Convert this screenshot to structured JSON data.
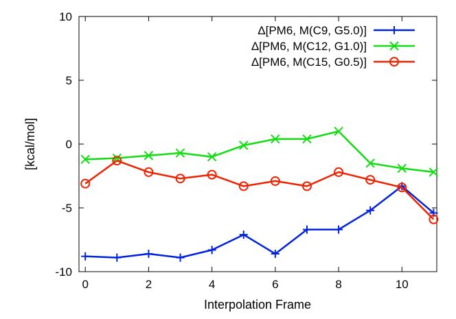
{
  "chart_data": {
    "type": "line",
    "title": "",
    "xlabel": "Interpolation Frame",
    "ylabel": "[kcal/mol]",
    "xlim": [
      -0.2,
      11.1
    ],
    "ylim": [
      -10,
      10
    ],
    "x_ticks": [
      0,
      2,
      4,
      6,
      8,
      10
    ],
    "y_ticks": [
      -10,
      -5,
      0,
      5,
      10
    ],
    "grid": false,
    "legend_position": "top-right",
    "x": [
      0,
      1,
      2,
      3,
      4,
      5,
      6,
      7,
      8,
      9,
      10,
      11
    ],
    "series": [
      {
        "name": "Δ[PM6, M(C9, G5.0)]",
        "color": "#0022dd",
        "marker": "plus",
        "values": [
          -8.8,
          -8.9,
          -8.6,
          -8.9,
          -8.3,
          -7.1,
          -8.6,
          -6.7,
          -6.7,
          -5.2,
          -3.3,
          -5.4
        ]
      },
      {
        "name": "Δ[PM6, M(C12, G1.0)]",
        "color": "#11dd11",
        "marker": "cross",
        "values": [
          -1.2,
          -1.1,
          -0.9,
          -0.7,
          -1.0,
          -0.1,
          0.4,
          0.4,
          1.0,
          -1.5,
          -1.9,
          -2.2
        ]
      },
      {
        "name": "Δ[PM6, M(C15, G0.5)]",
        "color": "#ee2200",
        "marker": "circle",
        "values": [
          -3.1,
          -1.3,
          -2.2,
          -2.7,
          -2.4,
          -3.3,
          -2.9,
          -3.3,
          -2.2,
          -2.8,
          -3.4,
          -5.9
        ]
      }
    ]
  }
}
